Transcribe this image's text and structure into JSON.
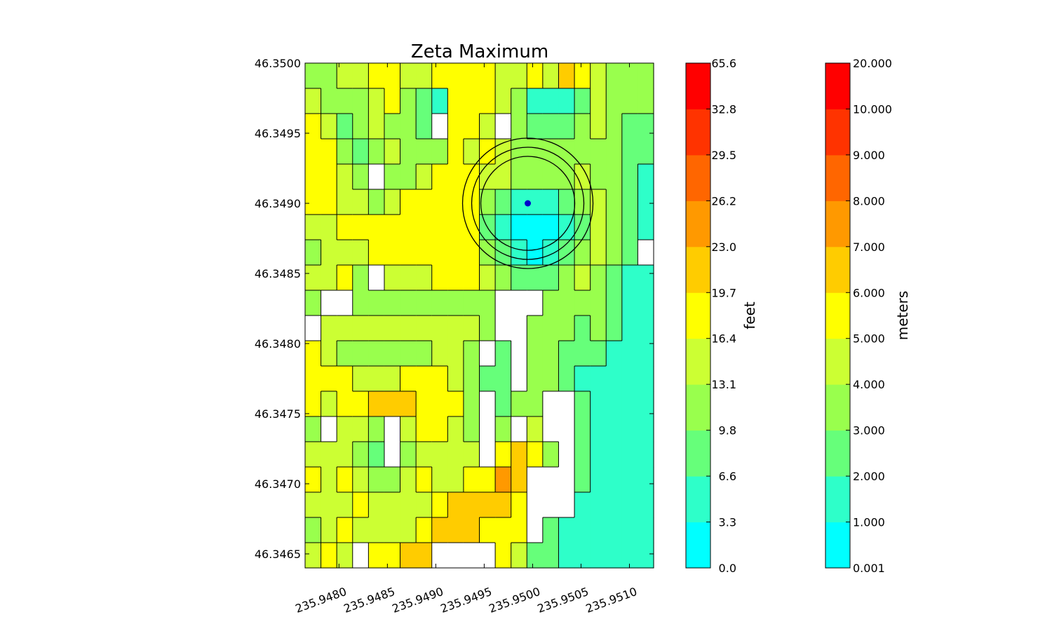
{
  "chart_data": {
    "type": "heatmap",
    "title": "Zeta Maximum",
    "xlabel": "",
    "ylabel": "",
    "x_ticks": [
      "235.9480",
      "235.9485",
      "235.9490",
      "235.9495",
      "235.9500",
      "235.9505",
      "235.9510"
    ],
    "y_ticks": [
      "46.3500",
      "46.3495",
      "46.3490",
      "46.3485",
      "46.3480",
      "46.3475",
      "46.3470",
      "46.3465"
    ],
    "xlim": [
      235.94765,
      235.95125
    ],
    "ylim": [
      46.3464,
      46.35
    ],
    "grid": false,
    "contour_lines": true,
    "marker": {
      "x": 235.94995,
      "y": 46.349,
      "color": "#0000cc"
    },
    "colorbars": [
      {
        "label": "feet",
        "ticks": [
          "0.0",
          "3.3",
          "6.6",
          "9.8",
          "13.1",
          "16.4",
          "19.7",
          "23.0",
          "26.2",
          "29.5",
          "32.8",
          "65.6"
        ]
      },
      {
        "label": "meters",
        "ticks": [
          "0.001",
          "1.000",
          "2.000",
          "3.000",
          "4.000",
          "5.000",
          "6.000",
          "7.000",
          "8.000",
          "9.000",
          "10.000",
          "20.000"
        ]
      }
    ],
    "levels_m": [
      0.001,
      1,
      2,
      3,
      4,
      5,
      6,
      7,
      8,
      9,
      10,
      20
    ],
    "level_colors": [
      "#00ffff",
      "#2effc9",
      "#66ff7a",
      "#99ff4d",
      "#ccff33",
      "#ffff00",
      "#ffcc00",
      "#ff9900",
      "#ff6600",
      "#ff3300",
      "#ff0000"
    ],
    "approx_grid_note_free": true,
    "z_grid_m": [
      [
        3,
        3,
        4,
        4,
        5,
        5,
        4,
        4,
        5,
        5,
        5,
        5,
        4,
        4,
        5,
        4,
        6,
        5,
        4,
        3,
        3,
        3
      ],
      [
        4,
        3,
        3,
        3,
        4,
        5,
        3,
        2,
        1,
        5,
        5,
        5,
        4,
        3,
        1,
        1,
        1,
        2,
        4,
        3,
        3,
        3
      ],
      [
        5,
        4,
        2,
        3,
        4,
        3,
        3,
        2,
        -1,
        5,
        5,
        4,
        -1,
        3,
        2,
        2,
        2,
        3,
        4,
        3,
        2,
        2
      ],
      [
        5,
        5,
        3,
        2,
        3,
        4,
        3,
        3,
        3,
        5,
        4,
        5,
        4,
        3,
        3,
        3,
        3,
        3,
        3,
        3,
        2,
        2
      ],
      [
        5,
        5,
        4,
        3,
        -1,
        3,
        3,
        4,
        5,
        5,
        5,
        4,
        4,
        3,
        3,
        3,
        3,
        4,
        3,
        3,
        2,
        1
      ],
      [
        5,
        5,
        4,
        4,
        3,
        4,
        5,
        5,
        5,
        5,
        5,
        3,
        2,
        1,
        1,
        1,
        2,
        3,
        4,
        3,
        2,
        1
      ],
      [
        4,
        4,
        5,
        5,
        5,
        5,
        5,
        5,
        5,
        5,
        5,
        2,
        1,
        0,
        0,
        0,
        1,
        2,
        4,
        3,
        2,
        1
      ],
      [
        3,
        4,
        4,
        4,
        5,
        5,
        5,
        5,
        5,
        5,
        5,
        3,
        2,
        1,
        0,
        1,
        2,
        3,
        4,
        3,
        2,
        -1
      ],
      [
        4,
        4,
        5,
        3,
        -1,
        4,
        4,
        4,
        5,
        5,
        5,
        4,
        3,
        2,
        2,
        2,
        3,
        4,
        3,
        2,
        1,
        1
      ],
      [
        3,
        -1,
        -1,
        3,
        3,
        3,
        3,
        3,
        3,
        3,
        3,
        3,
        -1,
        -1,
        -1,
        3,
        3,
        3,
        3,
        2,
        1,
        1
      ],
      [
        -1,
        4,
        4,
        4,
        4,
        4,
        4,
        4,
        4,
        4,
        4,
        3,
        -1,
        -1,
        3,
        3,
        3,
        2,
        3,
        2,
        1,
        1
      ],
      [
        5,
        4,
        3,
        3,
        3,
        3,
        3,
        3,
        4,
        4,
        3,
        -1,
        2,
        -1,
        3,
        3,
        2,
        2,
        2,
        1,
        1,
        1
      ],
      [
        5,
        5,
        5,
        4,
        4,
        4,
        5,
        5,
        5,
        4,
        3,
        2,
        2,
        -1,
        3,
        3,
        2,
        1,
        1,
        1,
        1,
        1
      ],
      [
        5,
        4,
        5,
        5,
        6,
        6,
        6,
        5,
        5,
        5,
        3,
        -1,
        2,
        3,
        3,
        -1,
        -1,
        2,
        1,
        1,
        1,
        1
      ],
      [
        3,
        -1,
        4,
        4,
        3,
        -1,
        4,
        5,
        5,
        4,
        3,
        -1,
        3,
        -1,
        4,
        -1,
        -1,
        2,
        1,
        1,
        1,
        1
      ],
      [
        4,
        4,
        4,
        3,
        2,
        -1,
        3,
        4,
        4,
        4,
        4,
        -1,
        5,
        6,
        5,
        3,
        -1,
        2,
        1,
        1,
        1,
        1
      ],
      [
        5,
        4,
        5,
        4,
        3,
        3,
        4,
        5,
        4,
        4,
        5,
        5,
        7,
        6,
        -1,
        -1,
        -1,
        2,
        1,
        1,
        1,
        1
      ],
      [
        4,
        4,
        4,
        5,
        4,
        4,
        4,
        4,
        5,
        6,
        6,
        6,
        6,
        5,
        -1,
        -1,
        -1,
        1,
        1,
        1,
        1,
        1
      ],
      [
        3,
        4,
        5,
        4,
        4,
        4,
        4,
        5,
        6,
        6,
        6,
        5,
        5,
        5,
        -1,
        2,
        1,
        1,
        1,
        1,
        1,
        1
      ],
      [
        4,
        5,
        4,
        -1,
        5,
        5,
        6,
        6,
        -1,
        -1,
        -1,
        -1,
        5,
        4,
        2,
        2,
        1,
        1,
        1,
        1,
        1,
        1
      ]
    ]
  }
}
